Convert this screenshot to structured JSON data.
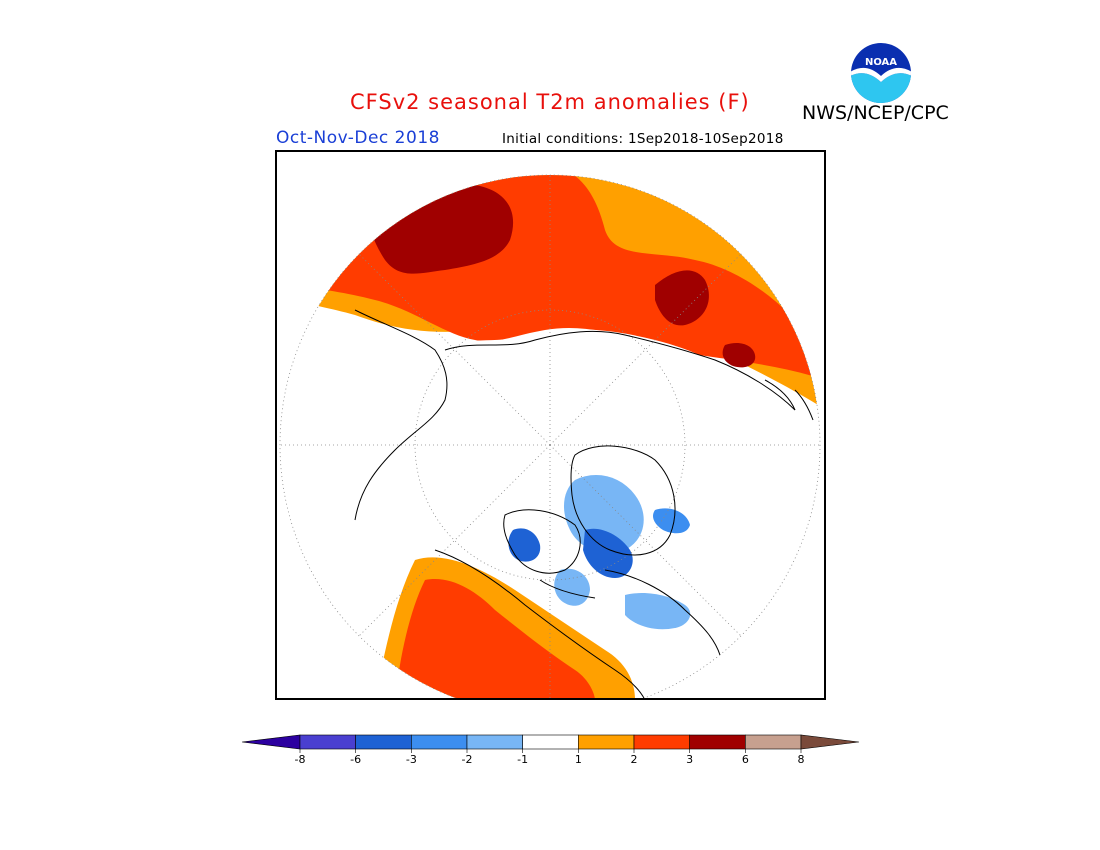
{
  "header": {
    "title": "CFSv2 seasonal T2m anomalies (F)",
    "title_color": "#e8100c",
    "season": "Oct-Nov-Dec 2018",
    "season_color": "#1a3fd6",
    "initial_conditions": "Initial conditions: 1Sep2018-10Sep2018",
    "agency": "NWS/NCEP/CPC",
    "logo_text": "NOAA"
  },
  "legend": {
    "labels": [
      "-8",
      "-6",
      "-3",
      "-2",
      "-1",
      "1",
      "2",
      "3",
      "6",
      "8"
    ],
    "colors": [
      "#2c00a0",
      "#4a3fd0",
      "#1e62d4",
      "#3c8ef0",
      "#78b6f5",
      "#ffffff",
      "#ffa000",
      "#ff3c00",
      "#a00000",
      "#c7a08f",
      "#7a4a3a"
    ]
  },
  "map": {
    "projection": "north polar stereographic",
    "colors": {
      "warm1": "#ffa000",
      "warm2": "#ff3c00",
      "warm3": "#a00000",
      "cool1": "#78b6f5",
      "cool2": "#3c8ef0",
      "cool3": "#1e62d4"
    }
  }
}
